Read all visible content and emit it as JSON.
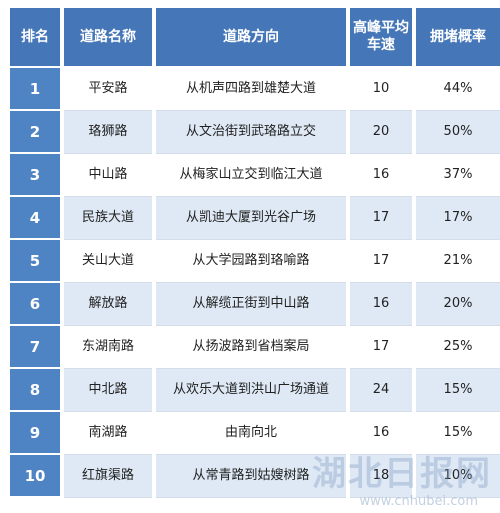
{
  "table": {
    "headers": [
      "排名",
      "道路名称",
      "道路方向",
      "高峰平均车速",
      "拥堵概率"
    ],
    "rows": [
      {
        "rank": "1",
        "road": "平安路",
        "direction": "从机声四路到雄楚大道",
        "speed": "10",
        "prob": "44%"
      },
      {
        "rank": "2",
        "road": "珞狮路",
        "direction": "从文治街到武珞路立交",
        "speed": "20",
        "prob": "50%"
      },
      {
        "rank": "3",
        "road": "中山路",
        "direction": "从梅家山立交到临江大道",
        "speed": "16",
        "prob": "37%"
      },
      {
        "rank": "4",
        "road": "民族大道",
        "direction": "从凯迪大厦到光谷广场",
        "speed": "17",
        "prob": "17%"
      },
      {
        "rank": "5",
        "road": "关山大道",
        "direction": "从大学园路到珞喻路",
        "speed": "17",
        "prob": "21%"
      },
      {
        "rank": "6",
        "road": "解放路",
        "direction": "从解缆正街到中山路",
        "speed": "16",
        "prob": "20%"
      },
      {
        "rank": "7",
        "road": "东湖南路",
        "direction": "从扬波路到省档案局",
        "speed": "17",
        "prob": "25%"
      },
      {
        "rank": "8",
        "road": "中北路",
        "direction": "从欢乐大道到洪山广场通道",
        "speed": "24",
        "prob": "15%"
      },
      {
        "rank": "9",
        "road": "南湖路",
        "direction": "由南向北",
        "speed": "16",
        "prob": "15%"
      },
      {
        "rank": "10",
        "road": "红旗渠路",
        "direction": "从常青路到姑嫂树路",
        "speed": "18",
        "prob": "10%"
      }
    ]
  },
  "watermark": {
    "text": "湖北日报网",
    "url": "www.cnhubei.com"
  }
}
